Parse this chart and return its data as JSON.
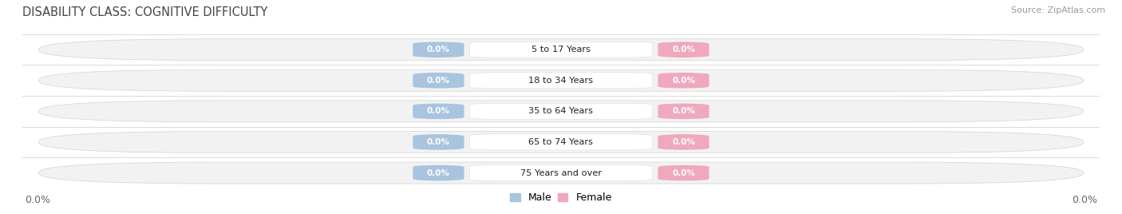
{
  "title": "DISABILITY CLASS: COGNITIVE DIFFICULTY",
  "source": "Source: ZipAtlas.com",
  "categories": [
    "5 to 17 Years",
    "18 to 34 Years",
    "35 to 64 Years",
    "65 to 74 Years",
    "75 Years and over"
  ],
  "male_values": [
    0.0,
    0.0,
    0.0,
    0.0,
    0.0
  ],
  "female_values": [
    0.0,
    0.0,
    0.0,
    0.0,
    0.0
  ],
  "male_color": "#a8c4de",
  "female_color": "#f0a8bc",
  "bar_bg_color": "#f2f2f2",
  "bar_border_color": "#d8d8d8",
  "male_label": "Male",
  "female_label": "Female",
  "x_left_label": "0.0%",
  "x_right_label": "0.0%",
  "title_fontsize": 10.5,
  "source_fontsize": 8,
  "tick_fontsize": 9,
  "background_color": "#ffffff",
  "divider_color": "#cccccc"
}
